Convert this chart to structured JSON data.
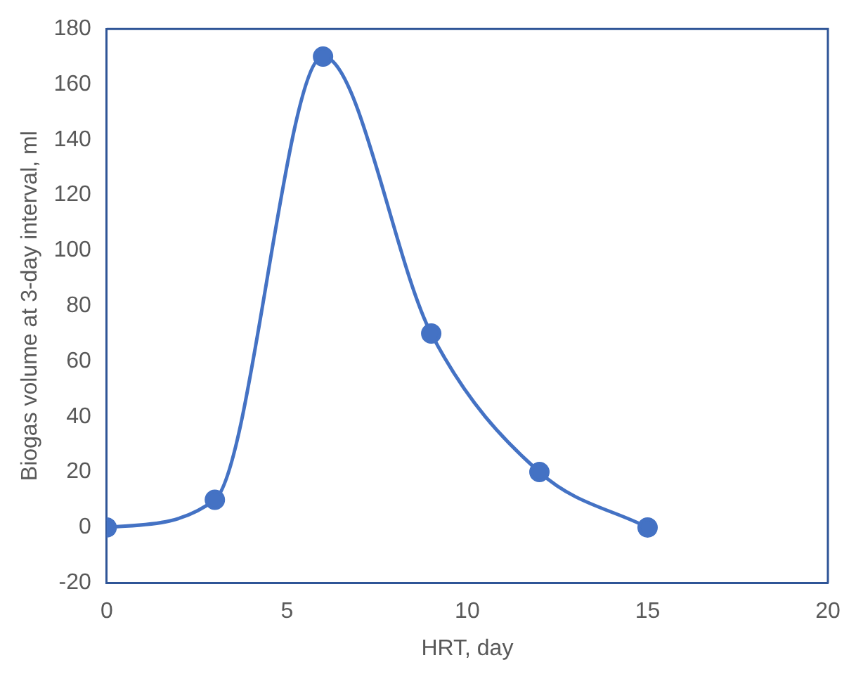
{
  "chart_data": {
    "type": "line",
    "xlabel": "HRT, day",
    "ylabel": "Biogas volume at 3-day interval, ml",
    "x": [
      0,
      3,
      6,
      9,
      12,
      15
    ],
    "series": [
      {
        "color": "#4472c4",
        "values": [
          0,
          10,
          170,
          70,
          20,
          0
        ]
      }
    ],
    "xlim": [
      0,
      20
    ],
    "xticks": [
      0,
      5,
      10,
      15,
      20
    ],
    "ylim": [
      -20,
      180
    ],
    "yticks": [
      -20,
      0,
      20,
      40,
      60,
      80,
      100,
      120,
      140,
      160,
      180
    ],
    "grid": false,
    "legend": false,
    "marker": "circle",
    "line_style": "solid"
  }
}
